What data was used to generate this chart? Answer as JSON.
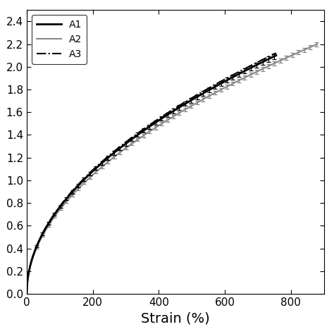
{
  "title": "",
  "xlabel": "Strain (%)",
  "ylabel": "",
  "xlim": [
    0,
    900
  ],
  "ylim": [
    0,
    2.5
  ],
  "yticks": [
    0,
    0.2,
    0.4,
    0.6,
    0.8,
    1.0,
    1.2,
    1.4,
    1.6,
    1.8,
    2.0,
    2.2,
    2.4
  ],
  "xticks": [
    0,
    200,
    400,
    600,
    800
  ],
  "series": [
    {
      "label": "A1",
      "color": "#000000",
      "linestyle": "-",
      "linewidth": 2.0
    },
    {
      "label": "A2",
      "color": "#888888",
      "linestyle": "-",
      "linewidth": 1.5
    },
    {
      "label": "A3",
      "color": "#000000",
      "linestyle": "-.",
      "linewidth": 1.5
    }
  ],
  "legend_loc": "upper left",
  "background_color": "#ffffff",
  "xlabel_fontsize": 14,
  "tick_fontsize": 11,
  "figsize": [
    4.74,
    4.74
  ],
  "dpi": 100
}
